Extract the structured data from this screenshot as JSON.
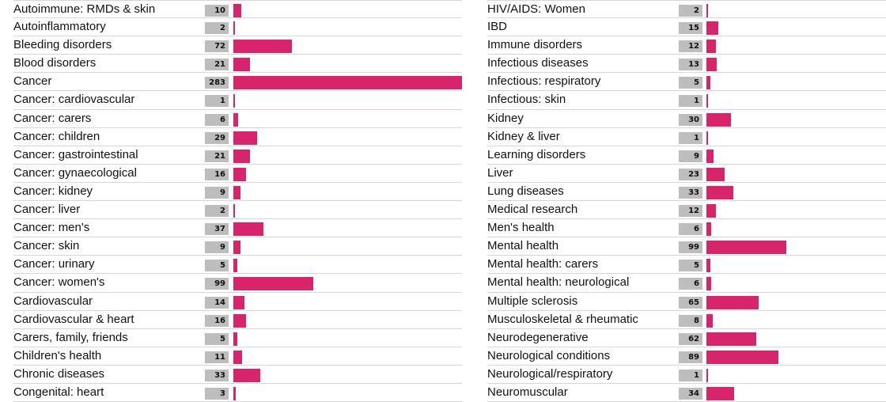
{
  "colors": {
    "bar": "#d8246a",
    "value_box": "#bdbdbd"
  },
  "chart_data": [
    {
      "type": "bar",
      "orientation": "horizontal",
      "categories": [
        "Autoimmune: RMDs & skin",
        "Autoinflammatory",
        "Bleeding disorders",
        "Blood disorders",
        "Cancer",
        "Cancer: cardiovascular",
        "Cancer: carers",
        "Cancer: children",
        "Cancer: gastrointestinal",
        "Cancer: gynaecological",
        "Cancer: kidney",
        "Cancer: liver",
        "Cancer: men's",
        "Cancer: skin",
        "Cancer: urinary",
        "Cancer: women's",
        "Cardiovascular",
        "Cardiovascular & heart",
        "Carers, family, friends",
        "Children's health",
        "Chronic diseases",
        "Congenital: heart"
      ],
      "values": [
        10,
        2,
        72,
        21,
        283,
        1,
        6,
        29,
        21,
        16,
        9,
        2,
        37,
        9,
        5,
        99,
        14,
        16,
        5,
        11,
        33,
        3
      ],
      "xlim": [
        0,
        283
      ]
    },
    {
      "type": "bar",
      "orientation": "horizontal",
      "categories": [
        "HIV/AIDS: Women",
        "IBD",
        "Immune disorders",
        "Infectious diseases",
        "Infectious: respiratory",
        "Infectious: skin",
        "Kidney",
        "Kidney & liver",
        "Learning disorders",
        "Liver",
        "Lung diseases",
        "Medical research",
        "Men's health",
        "Mental health",
        "Mental health: carers",
        "Mental health: neurological",
        "Multiple sclerosis",
        "Musculoskeletal & rheumatic",
        "Neurodegenerative",
        "Neurological conditions",
        "Neurological/respiratory",
        "Neuromuscular"
      ],
      "values": [
        2,
        15,
        12,
        13,
        5,
        1,
        30,
        1,
        9,
        23,
        33,
        12,
        6,
        99,
        5,
        6,
        65,
        8,
        62,
        89,
        1,
        34
      ],
      "xlim": [
        0,
        283
      ]
    }
  ]
}
